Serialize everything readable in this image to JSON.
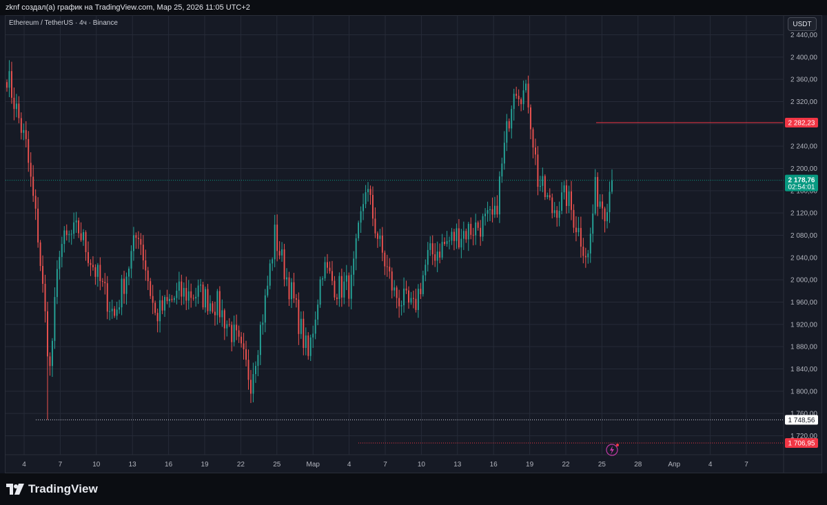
{
  "header": {
    "text": "zknf создал(а) график на TradingView.com, Мар 25, 2026 11:05 UTC+2"
  },
  "symbol": {
    "label": "Ethereum / TetherUS · 4ч · Binance"
  },
  "currency_button": "USDT",
  "footer": {
    "brand": "TradingView"
  },
  "colors": {
    "up": "#26a69a",
    "down": "#ef5350",
    "background": "#161a25",
    "grid": "#262b38",
    "price_tag": "#089981",
    "alert_tag": "#f23645"
  },
  "chart_data": {
    "type": "candlestick",
    "title": "",
    "ylim": [
      1708,
      2448
    ],
    "y_ticks": [
      "2 440,00",
      "2 400,00",
      "2 360,00",
      "2 320,00",
      "2 280,00",
      "2 240,00",
      "2 200,00",
      "2 160,00",
      "2 120,00",
      "2 080,00",
      "2 040,00",
      "2 000,00",
      "1 960,00",
      "1 920,00",
      "1 880,00",
      "1 840,00",
      "1 800,00",
      "1 760,00",
      "1 720,00"
    ],
    "x_ticks": [
      "4",
      "7",
      "10",
      "13",
      "16",
      "19",
      "22",
      "25",
      "Мар",
      "4",
      "7",
      "10",
      "13",
      "16",
      "19",
      "22",
      "25",
      "28",
      "Апр",
      "4",
      "7"
    ],
    "grid": true,
    "price_anchors": [
      {
        "bar": 0,
        "price": 2370
      },
      {
        "bar": 8,
        "price": 2240
      },
      {
        "bar": 13,
        "price": 2080
      },
      {
        "bar": 18,
        "price": 1836
      },
      {
        "bar": 22,
        "price": 2060
      },
      {
        "bar": 30,
        "price": 2090
      },
      {
        "bar": 38,
        "price": 2005
      },
      {
        "bar": 45,
        "price": 1935
      },
      {
        "bar": 55,
        "price": 2090
      },
      {
        "bar": 62,
        "price": 1935
      },
      {
        "bar": 72,
        "price": 1975
      },
      {
        "bar": 80,
        "price": 1975
      },
      {
        "bar": 88,
        "price": 1955
      },
      {
        "bar": 96,
        "price": 1890
      },
      {
        "bar": 102,
        "price": 1820
      },
      {
        "bar": 108,
        "price": 1960
      },
      {
        "bar": 112,
        "price": 2080
      },
      {
        "bar": 120,
        "price": 1960
      },
      {
        "bar": 126,
        "price": 1860
      },
      {
        "bar": 132,
        "price": 2025
      },
      {
        "bar": 138,
        "price": 1985
      },
      {
        "bar": 144,
        "price": 1990
      },
      {
        "bar": 150,
        "price": 2170
      },
      {
        "bar": 156,
        "price": 2060
      },
      {
        "bar": 162,
        "price": 1975
      },
      {
        "bar": 170,
        "price": 1945
      },
      {
        "bar": 176,
        "price": 2040
      },
      {
        "bar": 182,
        "price": 2060
      },
      {
        "bar": 188,
        "price": 2080
      },
      {
        "bar": 196,
        "price": 2095
      },
      {
        "bar": 204,
        "price": 2110
      },
      {
        "bar": 208,
        "price": 2235
      },
      {
        "bar": 212,
        "price": 2355
      },
      {
        "bar": 218,
        "price": 2325
      },
      {
        "bar": 222,
        "price": 2180
      },
      {
        "bar": 228,
        "price": 2125
      },
      {
        "bar": 234,
        "price": 2150
      },
      {
        "bar": 238,
        "price": 2100
      },
      {
        "bar": 243,
        "price": 2040
      },
      {
        "bar": 246,
        "price": 2160
      },
      {
        "bar": 250,
        "price": 2130
      },
      {
        "bar": 253,
        "price": 2178.76
      }
    ],
    "bar_count": 254,
    "spike_low": {
      "bar": 17,
      "price": 1748.56
    },
    "last_price": "2 178,76",
    "countdown": "02:54:01",
    "horizontal_levels": [
      {
        "price": 2282.23,
        "label": "2 282,23",
        "style": "solid",
        "color": "#f23645"
      },
      {
        "price": 1748.56,
        "label": "1 748,56",
        "style": "dotted",
        "color": "#d1d4dc"
      },
      {
        "price": 1706.95,
        "label": "1 706,95",
        "style": "dotted",
        "color": "#f23645"
      }
    ]
  }
}
